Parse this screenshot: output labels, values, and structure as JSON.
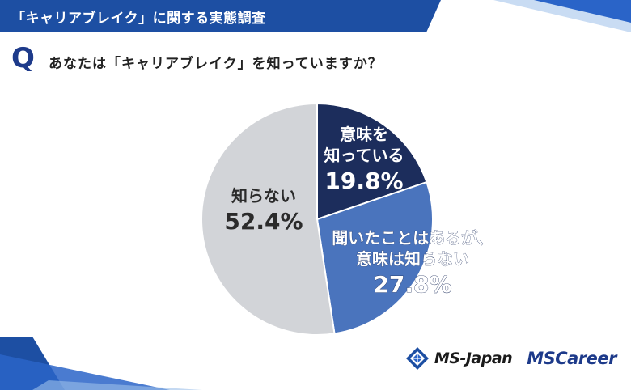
{
  "header": {
    "title": "「キャリアブレイク」に関する実態調査"
  },
  "question": {
    "mark": "Q",
    "text": "あなたは「キャリアブレイク」を知っていますか？"
  },
  "chart_data": {
    "type": "pie",
    "slices": [
      {
        "label_lines": [
          "意味を",
          "知っている"
        ],
        "value_label": "19.8%",
        "value": 19.8,
        "color": "#1c2d5c",
        "text_color": "#ffffff"
      },
      {
        "label_lines": [
          "聞いたことはあるが、",
          "意味は知らない"
        ],
        "value_label": "27.8%",
        "value": 27.8,
        "color": "#4a74bd",
        "text_color": "#ffffff"
      },
      {
        "label_lines": [
          "知らない"
        ],
        "value_label": "52.4%",
        "value": 52.4,
        "color": "#d2d4d8",
        "text_color": "#2b2b2b"
      }
    ]
  },
  "logos": {
    "ms_japan": "MS-Japan",
    "ms_career": "MSCareer"
  },
  "colors": {
    "header_blue": "#1d4fa3",
    "accent_blue": "#2a64c8",
    "q_blue": "#1d3a8a"
  },
  "icons": {
    "ms_japan_logo": "diamond-lattice-icon"
  }
}
